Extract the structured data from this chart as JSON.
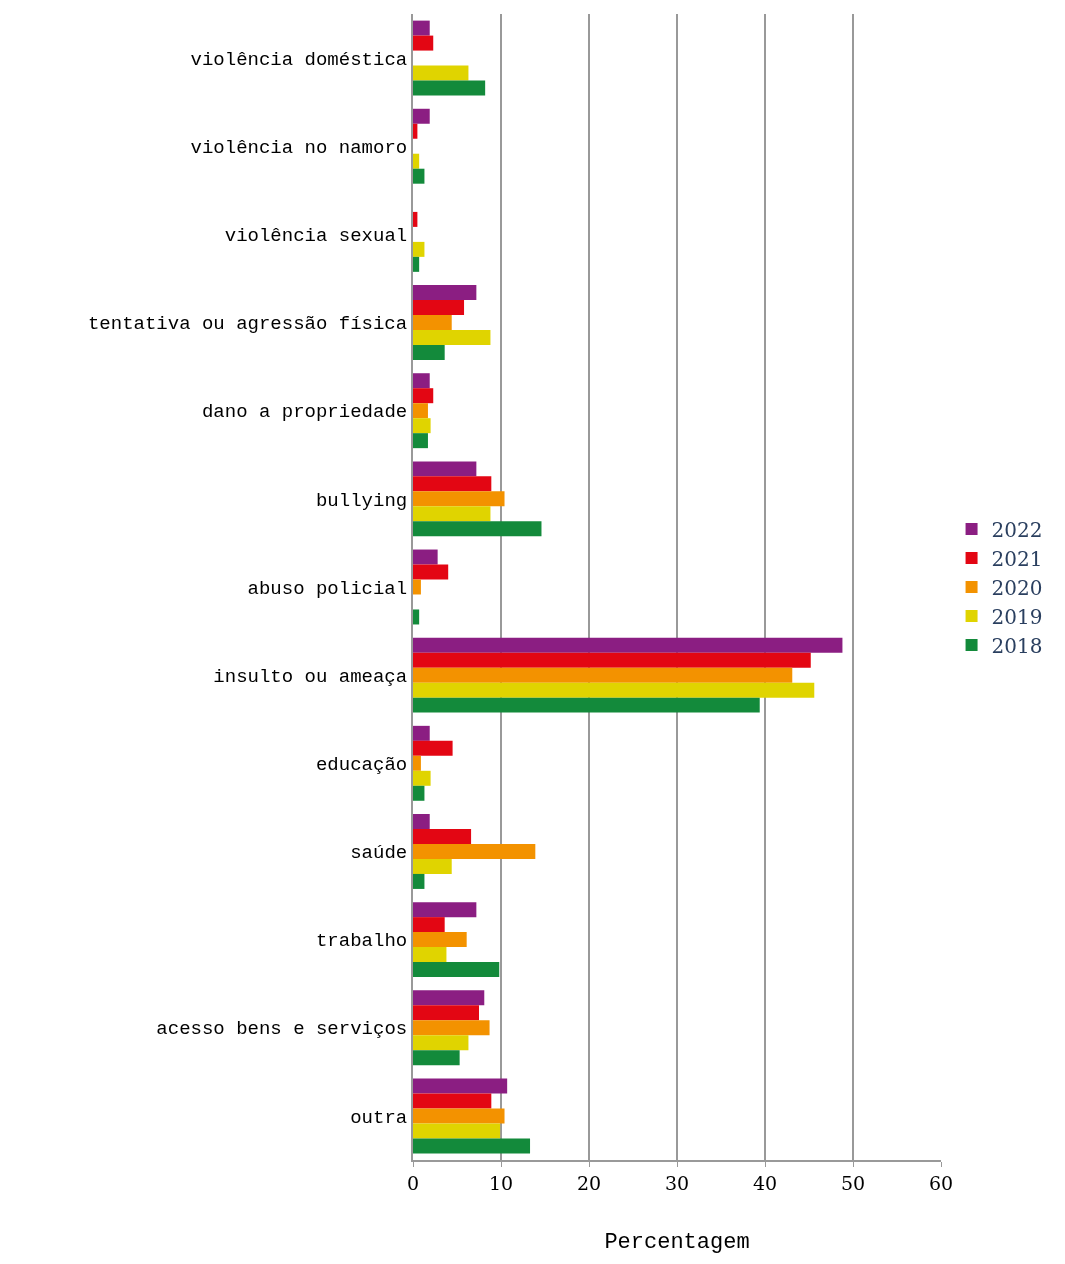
{
  "chart_data": {
    "type": "bar",
    "orientation": "horizontal",
    "xlabel": "Percentagem",
    "categories": [
      "violência doméstica",
      "violência no namoro",
      "violência sexual",
      "tentativa ou agressão física",
      "dano a propriedade",
      "bullying",
      "abuso policial",
      "insulto ou ameaça",
      "educação",
      "saúde",
      "trabalho",
      "acesso bens e serviços",
      "outra"
    ],
    "series": [
      {
        "name": "2022",
        "color": "#8b1e82",
        "values": [
          1.9,
          1.9,
          0,
          7.2,
          1.9,
          7.2,
          2.8,
          48.8,
          1.9,
          1.9,
          7.2,
          8.1,
          10.7
        ]
      },
      {
        "name": "2021",
        "color": "#e30613",
        "values": [
          2.3,
          0.5,
          0.5,
          5.8,
          2.3,
          8.9,
          4.0,
          45.2,
          4.5,
          6.6,
          3.6,
          7.5,
          8.9
        ]
      },
      {
        "name": "2020",
        "color": "#f39200",
        "values": [
          0,
          0,
          0,
          4.4,
          1.7,
          10.4,
          0.9,
          43.1,
          0.9,
          13.9,
          6.1,
          8.7,
          10.4
        ]
      },
      {
        "name": "2019",
        "color": "#e0d400",
        "values": [
          6.3,
          0.7,
          1.3,
          8.8,
          2.0,
          8.8,
          0,
          45.6,
          2.0,
          4.4,
          3.8,
          6.3,
          9.9
        ]
      },
      {
        "name": "2018",
        "color": "#138a3b",
        "values": [
          8.2,
          1.3,
          0.7,
          3.6,
          1.7,
          14.6,
          0.7,
          39.4,
          1.3,
          1.3,
          9.8,
          5.3,
          13.3
        ]
      }
    ],
    "xlim": [
      0,
      60
    ],
    "xticks": [
      0,
      10,
      20,
      30,
      40,
      50,
      60
    ],
    "grid": "x",
    "legend": "right"
  }
}
